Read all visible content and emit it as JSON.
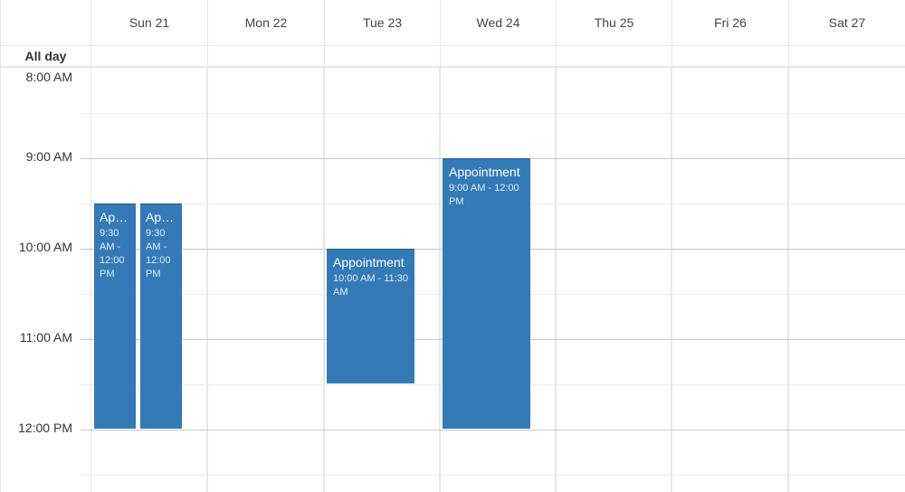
{
  "header": {
    "days": [
      {
        "label": "Sun 21"
      },
      {
        "label": "Mon 22"
      },
      {
        "label": "Tue 23"
      },
      {
        "label": "Wed 24"
      },
      {
        "label": "Thu 25"
      },
      {
        "label": "Fri 26"
      },
      {
        "label": "Sat 27"
      }
    ]
  },
  "allday_label": "All day",
  "times": [
    "8:00 AM",
    "9:00 AM",
    "10:00 AM",
    "11:00 AM",
    "12:00 PM"
  ],
  "events": [
    {
      "title": "Appointment",
      "time": "9:30 AM - 12:00 PM"
    },
    {
      "title": "Appointment",
      "time": "9:30 AM - 12:00 PM"
    },
    {
      "title": "Appointment",
      "time": "10:00 AM - 11:30 AM"
    },
    {
      "title": "Appointment",
      "time": "9:00 AM - 12:00 PM"
    }
  ],
  "colors": {
    "event": "#337ab7",
    "grid": "#e6e6e6"
  }
}
